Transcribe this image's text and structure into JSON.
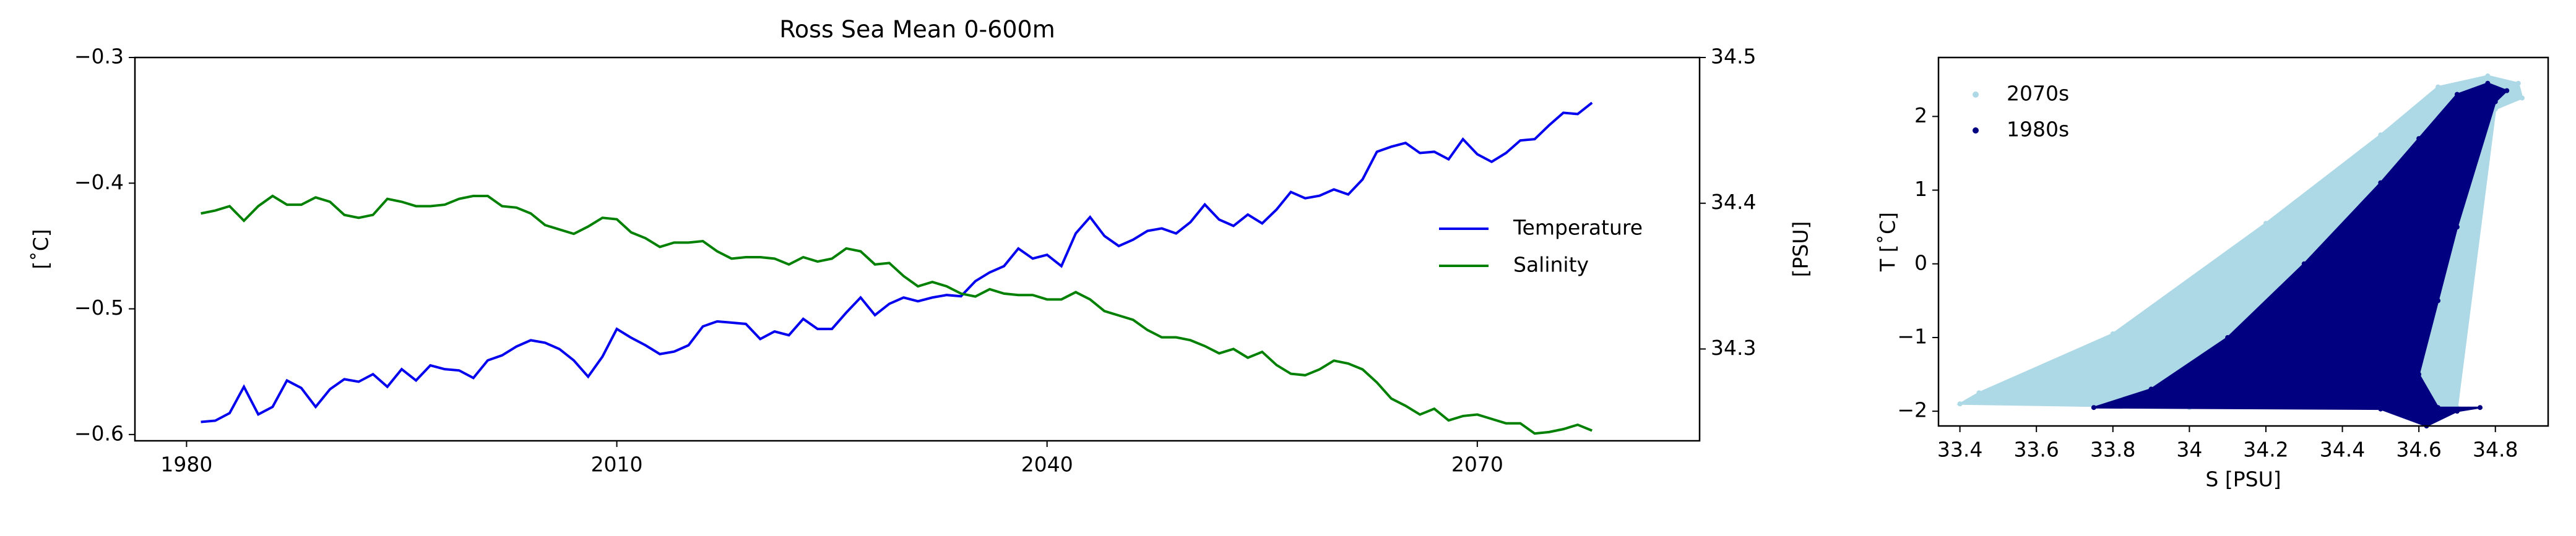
{
  "chart_data": [
    {
      "type": "line",
      "title": "Ross Sea Mean 0-600m",
      "ylabel": "[˚C]",
      "y2label": "[PSU]",
      "x": [
        1981,
        1982,
        1983,
        1984,
        1985,
        1986,
        1987,
        1988,
        1989,
        1990,
        1991,
        1992,
        1993,
        1994,
        1995,
        1996,
        1997,
        1998,
        1999,
        2000,
        2001,
        2002,
        2003,
        2004,
        2005,
        2006,
        2007,
        2008,
        2009,
        2010,
        2011,
        2012,
        2013,
        2014,
        2015,
        2016,
        2017,
        2018,
        2019,
        2020,
        2021,
        2022,
        2023,
        2024,
        2025,
        2026,
        2027,
        2028,
        2029,
        2030,
        2031,
        2032,
        2033,
        2034,
        2035,
        2036,
        2037,
        2038,
        2039,
        2040,
        2041,
        2042,
        2043,
        2044,
        2045,
        2046,
        2047,
        2048,
        2049,
        2050,
        2051,
        2052,
        2053,
        2054,
        2055,
        2056,
        2057,
        2058,
        2059,
        2060,
        2061,
        2062,
        2063,
        2064,
        2065,
        2066,
        2067,
        2068,
        2069,
        2070,
        2071,
        2072,
        2073,
        2074,
        2075,
        2076,
        2077,
        2078
      ],
      "series": [
        {
          "name": "Temperature",
          "color": "#0000ee",
          "values": [
            -0.59,
            -0.589,
            -0.583,
            -0.562,
            -0.584,
            -0.578,
            -0.557,
            -0.563,
            -0.578,
            -0.564,
            -0.556,
            -0.558,
            -0.552,
            -0.562,
            -0.548,
            -0.557,
            -0.545,
            -0.548,
            -0.549,
            -0.555,
            -0.541,
            -0.537,
            -0.53,
            -0.525,
            -0.527,
            -0.532,
            -0.541,
            -0.554,
            -0.538,
            -0.516,
            -0.523,
            -0.529,
            -0.536,
            -0.534,
            -0.529,
            -0.514,
            -0.51,
            -0.511,
            -0.512,
            -0.524,
            -0.518,
            -0.521,
            -0.508,
            -0.516,
            -0.516,
            -0.503,
            -0.491,
            -0.505,
            -0.496,
            -0.491,
            -0.494,
            -0.491,
            -0.489,
            -0.49,
            -0.478,
            -0.471,
            -0.466,
            -0.452,
            -0.46,
            -0.457,
            -0.466,
            -0.44,
            -0.427,
            -0.442,
            -0.45,
            -0.445,
            -0.438,
            -0.436,
            -0.44,
            -0.431,
            -0.417,
            -0.429,
            -0.434,
            -0.425,
            -0.432,
            -0.421,
            -0.407,
            -0.412,
            -0.41,
            -0.405,
            -0.409,
            -0.397,
            -0.375,
            -0.371,
            -0.368,
            -0.376,
            -0.375,
            -0.381,
            -0.365,
            -0.377,
            -0.383,
            -0.376,
            -0.366,
            -0.365,
            -0.354,
            -0.344,
            -0.345,
            -0.336
          ]
        },
        {
          "name": "Salinity",
          "color": "#008000",
          "axis": "y2",
          "values": [
            34.393,
            34.395,
            34.398,
            34.388,
            34.398,
            34.405,
            34.399,
            34.399,
            34.404,
            34.401,
            34.392,
            34.39,
            34.392,
            34.403,
            34.401,
            34.398,
            34.398,
            34.399,
            34.403,
            34.405,
            34.405,
            34.398,
            34.397,
            34.393,
            34.385,
            34.382,
            34.379,
            34.384,
            34.39,
            34.389,
            34.38,
            34.376,
            34.37,
            34.373,
            34.373,
            34.374,
            34.367,
            34.362,
            34.363,
            34.363,
            34.362,
            34.358,
            34.363,
            34.36,
            34.362,
            34.369,
            34.367,
            34.358,
            34.359,
            34.35,
            34.343,
            34.346,
            34.343,
            34.338,
            34.336,
            34.341,
            34.338,
            34.337,
            34.337,
            34.334,
            34.334,
            34.339,
            34.334,
            34.326,
            34.323,
            34.32,
            34.313,
            34.308,
            34.308,
            34.306,
            34.302,
            34.297,
            34.3,
            34.294,
            34.298,
            34.289,
            34.283,
            34.282,
            34.286,
            34.292,
            34.29,
            34.286,
            34.277,
            34.266,
            34.261,
            34.255,
            34.259,
            34.251,
            34.254,
            34.255,
            34.252,
            34.249,
            34.249,
            34.242,
            34.243,
            34.245,
            34.248,
            34.244
          ]
        }
      ],
      "xlim": [
        1976.4,
        2085.5
      ],
      "xticks": [
        1980,
        2010,
        2040,
        2070
      ],
      "ylim": [
        -0.605,
        -0.3
      ],
      "yticks": [
        {
          "value": -0.6,
          "label": "−0.6"
        },
        {
          "value": -0.5,
          "label": "−0.5"
        },
        {
          "value": -0.4,
          "label": "−0.4"
        },
        {
          "value": -0.3,
          "label": "−0.3"
        }
      ],
      "y2lim": [
        34.237,
        34.5
      ],
      "y2ticks": [
        34.3,
        34.4,
        34.5
      ],
      "legend": "right"
    },
    {
      "type": "scatter",
      "xlabel": "S [PSU]",
      "ylabel": "T [˚C]",
      "series": [
        {
          "name": "2070s",
          "color": "#add8e6",
          "x": [
            33.4,
            33.45,
            33.8,
            34.2,
            34.5,
            34.65,
            34.78,
            34.86,
            34.87,
            34.8,
            34.7,
            34.0
          ],
          "values": [
            -1.9,
            -1.75,
            -0.95,
            0.55,
            1.75,
            2.4,
            2.55,
            2.45,
            2.25,
            2.1,
            -1.95,
            -1.95
          ]
        },
        {
          "name": "1980s",
          "color": "#000080",
          "x": [
            33.75,
            33.9,
            34.1,
            34.3,
            34.5,
            34.6,
            34.7,
            34.78,
            34.83,
            34.8,
            34.7,
            34.65,
            34.6,
            34.65,
            34.76,
            34.7,
            34.62,
            34.5
          ],
          "values": [
            -1.95,
            -1.7,
            -1.0,
            0.0,
            1.1,
            1.7,
            2.3,
            2.45,
            2.35,
            2.2,
            0.5,
            -0.5,
            -1.5,
            -1.95,
            -1.95,
            -2.0,
            -2.2,
            -1.97
          ]
        }
      ],
      "xlim": [
        33.344,
        34.938
      ],
      "xticks": [
        33.4,
        33.6,
        33.8,
        34.0,
        34.2,
        34.4,
        34.6,
        34.8
      ],
      "ylim": [
        -2.2,
        2.8
      ],
      "yticks": [
        {
          "value": -2,
          "label": "−2"
        },
        {
          "value": -1,
          "label": "−1"
        },
        0,
        1,
        2
      ],
      "legend": "upper left"
    }
  ]
}
